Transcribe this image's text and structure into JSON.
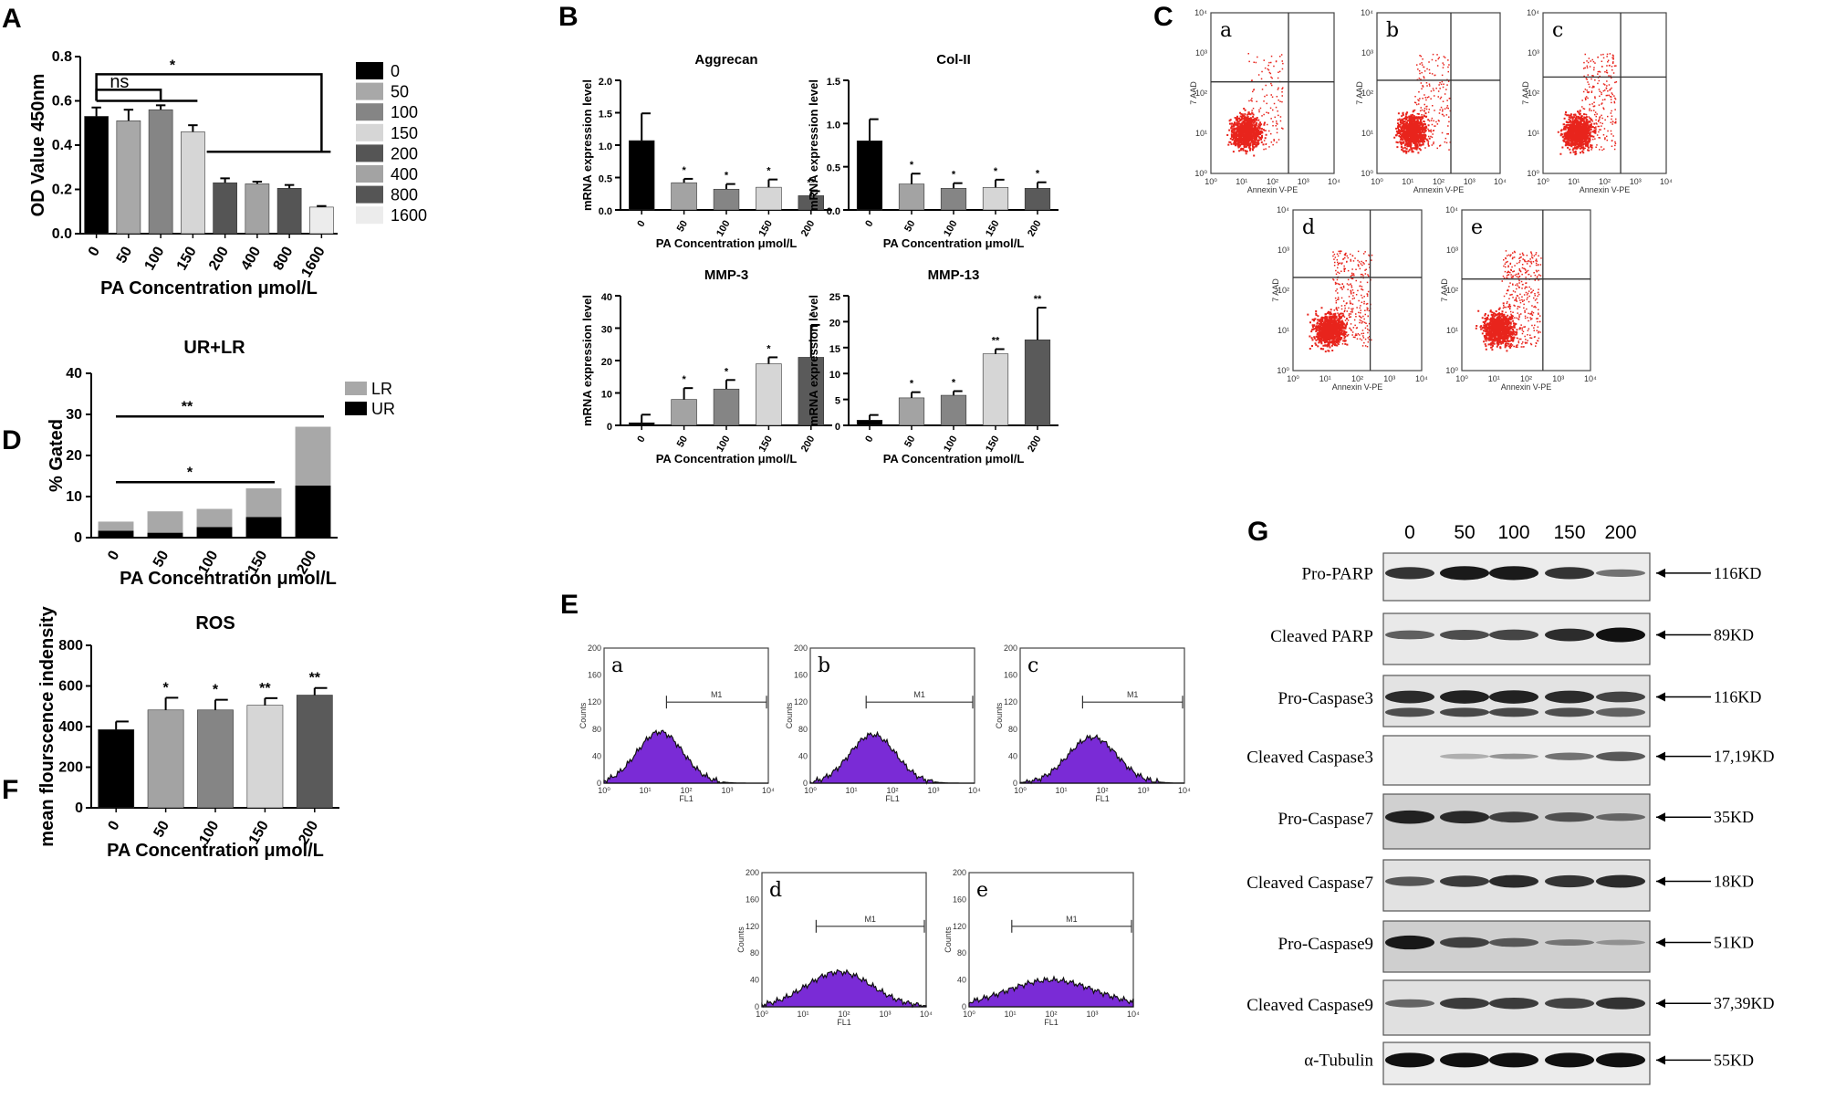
{
  "panel_labels": {
    "A": "A",
    "B": "B",
    "C": "C",
    "D": "D",
    "E": "E",
    "F": "F",
    "G": "G"
  },
  "chart_data": [
    {
      "id": "A",
      "type": "bar",
      "categories": [
        "0",
        "50",
        "100",
        "150",
        "200",
        "400",
        "800",
        "1600"
      ],
      "values": [
        0.53,
        0.51,
        0.56,
        0.46,
        0.23,
        0.225,
        0.205,
        0.12
      ],
      "errors": [
        0.04,
        0.05,
        0.02,
        0.03,
        0.02,
        0.01,
        0.015,
        0.005
      ],
      "colors": [
        "#000000",
        "#a8a8a8",
        "#858585",
        "#d6d6d6",
        "#555555",
        "#a3a3a3",
        "#555555",
        "#ececec"
      ],
      "title": "",
      "xlabel": "PA  Concentration  μmol/L",
      "ylabel": "OD Value 450nm",
      "ylim": [
        0,
        0.8
      ],
      "yticks": [
        "0.0",
        "0.2",
        "0.4",
        "0.6",
        "0.8"
      ],
      "legend": [
        "0",
        "50",
        "100",
        "150",
        "200",
        "400",
        "800",
        "1600"
      ],
      "annotations": [
        "ns",
        "*"
      ]
    },
    {
      "id": "B1",
      "type": "bar",
      "title": "Aggrecan",
      "categories": [
        "0",
        "50",
        "100",
        "150",
        "200"
      ],
      "values": [
        1.07,
        0.42,
        0.32,
        0.35,
        0.22
      ],
      "errors": [
        0.42,
        0.06,
        0.08,
        0.12,
        0.07
      ],
      "colors": [
        "#000000",
        "#a3a3a3",
        "#858585",
        "#d6d6d6",
        "#5a5a5a"
      ],
      "marks": [
        "",
        "*",
        "*",
        "*",
        "**"
      ],
      "ylim": [
        0,
        2.0
      ],
      "yticks": [
        "0.0",
        "0.5",
        "1.0",
        "1.5",
        "2.0"
      ],
      "xlabel": "PA  Concentration  μmol/L",
      "ylabel": "mRNA expression level"
    },
    {
      "id": "B2",
      "type": "bar",
      "title": "Col-II",
      "categories": [
        "0",
        "50",
        "100",
        "150",
        "200"
      ],
      "values": [
        0.8,
        0.3,
        0.25,
        0.26,
        0.25
      ],
      "errors": [
        0.25,
        0.12,
        0.06,
        0.09,
        0.07
      ],
      "colors": [
        "#000000",
        "#a3a3a3",
        "#858585",
        "#d6d6d6",
        "#5a5a5a"
      ],
      "marks": [
        "",
        "*",
        "*",
        "*",
        "*"
      ],
      "ylim": [
        0,
        1.5
      ],
      "yticks": [
        "0.0",
        "0.5",
        "1.0",
        "1.5"
      ],
      "xlabel": "PA  Concentration  μmol/L",
      "ylabel": "mRNA expression level"
    },
    {
      "id": "B3",
      "type": "bar",
      "title": "MMP-3",
      "categories": [
        "0",
        "50",
        "100",
        "150",
        "200"
      ],
      "values": [
        0.8,
        8,
        11.2,
        19,
        21
      ],
      "errors": [
        2.5,
        3.5,
        2.8,
        2,
        10
      ],
      "colors": [
        "#000000",
        "#a3a3a3",
        "#858585",
        "#d6d6d6",
        "#5a5a5a"
      ],
      "marks": [
        "",
        "*",
        "*",
        "*",
        "*"
      ],
      "ylim": [
        0,
        40
      ],
      "yticks": [
        "0",
        "10",
        "20",
        "30",
        "40"
      ],
      "xlabel": "PA  Concentration  μmol/L",
      "ylabel": "mRNA expression level"
    },
    {
      "id": "B4",
      "type": "bar",
      "title": "MMP-13",
      "categories": [
        "0",
        "50",
        "100",
        "150",
        "200"
      ],
      "values": [
        1,
        5.3,
        5.8,
        13.8,
        16.5
      ],
      "errors": [
        1,
        1.1,
        0.8,
        0.9,
        6.2
      ],
      "colors": [
        "#000000",
        "#a3a3a3",
        "#858585",
        "#d6d6d6",
        "#5a5a5a"
      ],
      "marks": [
        "",
        "*",
        "*",
        "**",
        "**"
      ],
      "ylim": [
        0,
        25
      ],
      "yticks": [
        "0",
        "5",
        "10",
        "15",
        "20",
        "25"
      ],
      "xlabel": "PA  Concentration  μmol/L",
      "ylabel": "mRNA expression level"
    },
    {
      "id": "D",
      "type": "stacked-bar",
      "title": "UR+LR",
      "categories": [
        "0",
        "50",
        "100",
        "150",
        "200"
      ],
      "series": [
        {
          "name": "UR",
          "color": "#000000",
          "values": [
            1.7,
            1.2,
            2.6,
            5.0,
            12.7
          ]
        },
        {
          "name": "LR",
          "color": "#a8a8a8",
          "values": [
            2.2,
            5.2,
            4.4,
            7.0,
            14.3
          ]
        }
      ],
      "legend": [
        "LR",
        "UR"
      ],
      "ylim": [
        0,
        40
      ],
      "yticks": [
        "0",
        "10",
        "20",
        "30",
        "40"
      ],
      "xlabel": "PA  Concentration  μmol/L",
      "ylabel": "% Gated",
      "annotations": [
        "**",
        "*"
      ]
    },
    {
      "id": "F",
      "type": "bar",
      "title": "ROS",
      "categories": [
        "0",
        "50",
        "100",
        "150",
        "200"
      ],
      "values": [
        385,
        482,
        482,
        505,
        555
      ],
      "errors": [
        40,
        60,
        50,
        35,
        35
      ],
      "colors": [
        "#000000",
        "#a3a3a3",
        "#858585",
        "#d6d6d6",
        "#5a5a5a"
      ],
      "marks": [
        "",
        "*",
        "*",
        "**",
        "**"
      ],
      "ylim": [
        0,
        800
      ],
      "yticks": [
        "0",
        "200",
        "400",
        "600",
        "800"
      ],
      "xlabel": "PA  Concentration  μmol/L",
      "ylabel": "mean flourscence indensity"
    }
  ],
  "flow_plots": {
    "letters": [
      "a",
      "b",
      "c",
      "d",
      "e"
    ],
    "x_axis": "Annexin V-PE",
    "y_axis": "7 AAD",
    "x_ticks": [
      "10⁰",
      "10¹",
      "10²",
      "10³",
      "10⁴"
    ],
    "y_ticks": [
      "10⁰",
      "10¹",
      "10²",
      "10³",
      "10⁴"
    ]
  },
  "histograms": {
    "letters": [
      "a",
      "b",
      "c",
      "d",
      "e"
    ],
    "x_axis": "FL1",
    "y_axis": "Counts",
    "gate": "M1",
    "x_ticks": [
      "10⁰",
      "10¹",
      "10²",
      "10³",
      "10⁴"
    ],
    "y_ticks": [
      "0",
      "40",
      "80",
      "120",
      "160",
      "200"
    ]
  },
  "western_blot": {
    "lanes": [
      "0",
      "50",
      "100",
      "150",
      "200"
    ],
    "rows": [
      {
        "name": "Pro-PARP",
        "kd": "116KD"
      },
      {
        "name": "Cleaved PARP",
        "kd": "89KD"
      },
      {
        "name": "Pro-Caspase3",
        "kd": "116KD"
      },
      {
        "name": "Cleaved Caspase3",
        "kd": "17,19KD"
      },
      {
        "name": "Pro-Caspase7",
        "kd": "35KD"
      },
      {
        "name": "Cleaved Caspase7",
        "kd": "18KD"
      },
      {
        "name": "Pro-Caspase9",
        "kd": "51KD"
      },
      {
        "name": "Cleaved Caspase9",
        "kd": "37,39KD"
      },
      {
        "name": "α-Tubulin",
        "kd": "55KD"
      }
    ]
  }
}
